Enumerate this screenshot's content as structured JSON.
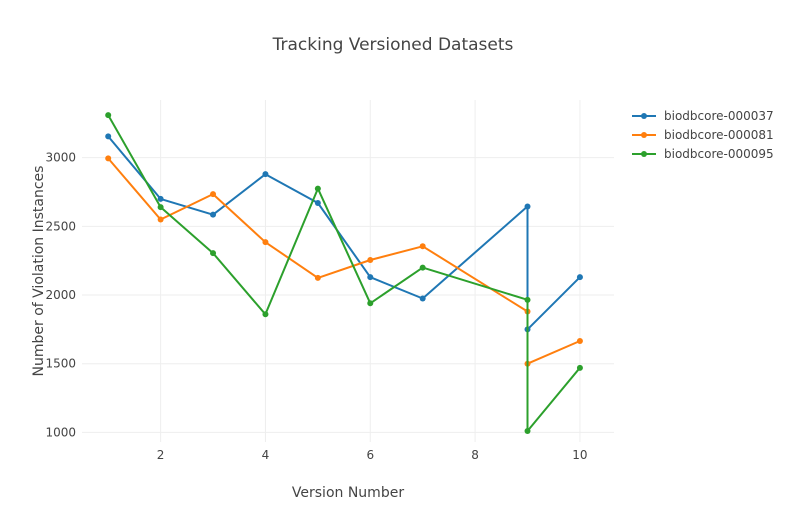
{
  "chart_data": {
    "type": "line",
    "title": "Tracking Versioned Datasets",
    "xlabel": "Version Number",
    "ylabel": "Number of Violation Instances",
    "xlim": [
      0.5,
      10.65
    ],
    "ylim": [
      930,
      3420
    ],
    "xticks": [
      2,
      4,
      6,
      8,
      10
    ],
    "yticks": [
      1000,
      1500,
      2000,
      2500,
      3000
    ],
    "grid": true,
    "legend_position": "top-right",
    "series": [
      {
        "name": "biodbcore-000037",
        "color": "#1f77b4",
        "x": [
          1,
          2,
          3,
          4,
          5,
          6,
          7,
          9,
          9,
          10
        ],
        "y": [
          3155,
          2700,
          2585,
          2880,
          2670,
          2130,
          1975,
          2645,
          1750,
          2130
        ]
      },
      {
        "name": "biodbcore-000081",
        "color": "#ff7f0e",
        "x": [
          1,
          2,
          3,
          4,
          5,
          6,
          7,
          9,
          9,
          10
        ],
        "y": [
          2995,
          2550,
          2735,
          2385,
          2125,
          2255,
          2355,
          1880,
          1500,
          1665
        ]
      },
      {
        "name": "biodbcore-000095",
        "color": "#2ca02c",
        "x": [
          1,
          2,
          3,
          4,
          5,
          6,
          7,
          9,
          9,
          10
        ],
        "y": [
          3310,
          2640,
          2305,
          1860,
          2775,
          1940,
          2200,
          1965,
          1010,
          1470
        ]
      }
    ]
  }
}
